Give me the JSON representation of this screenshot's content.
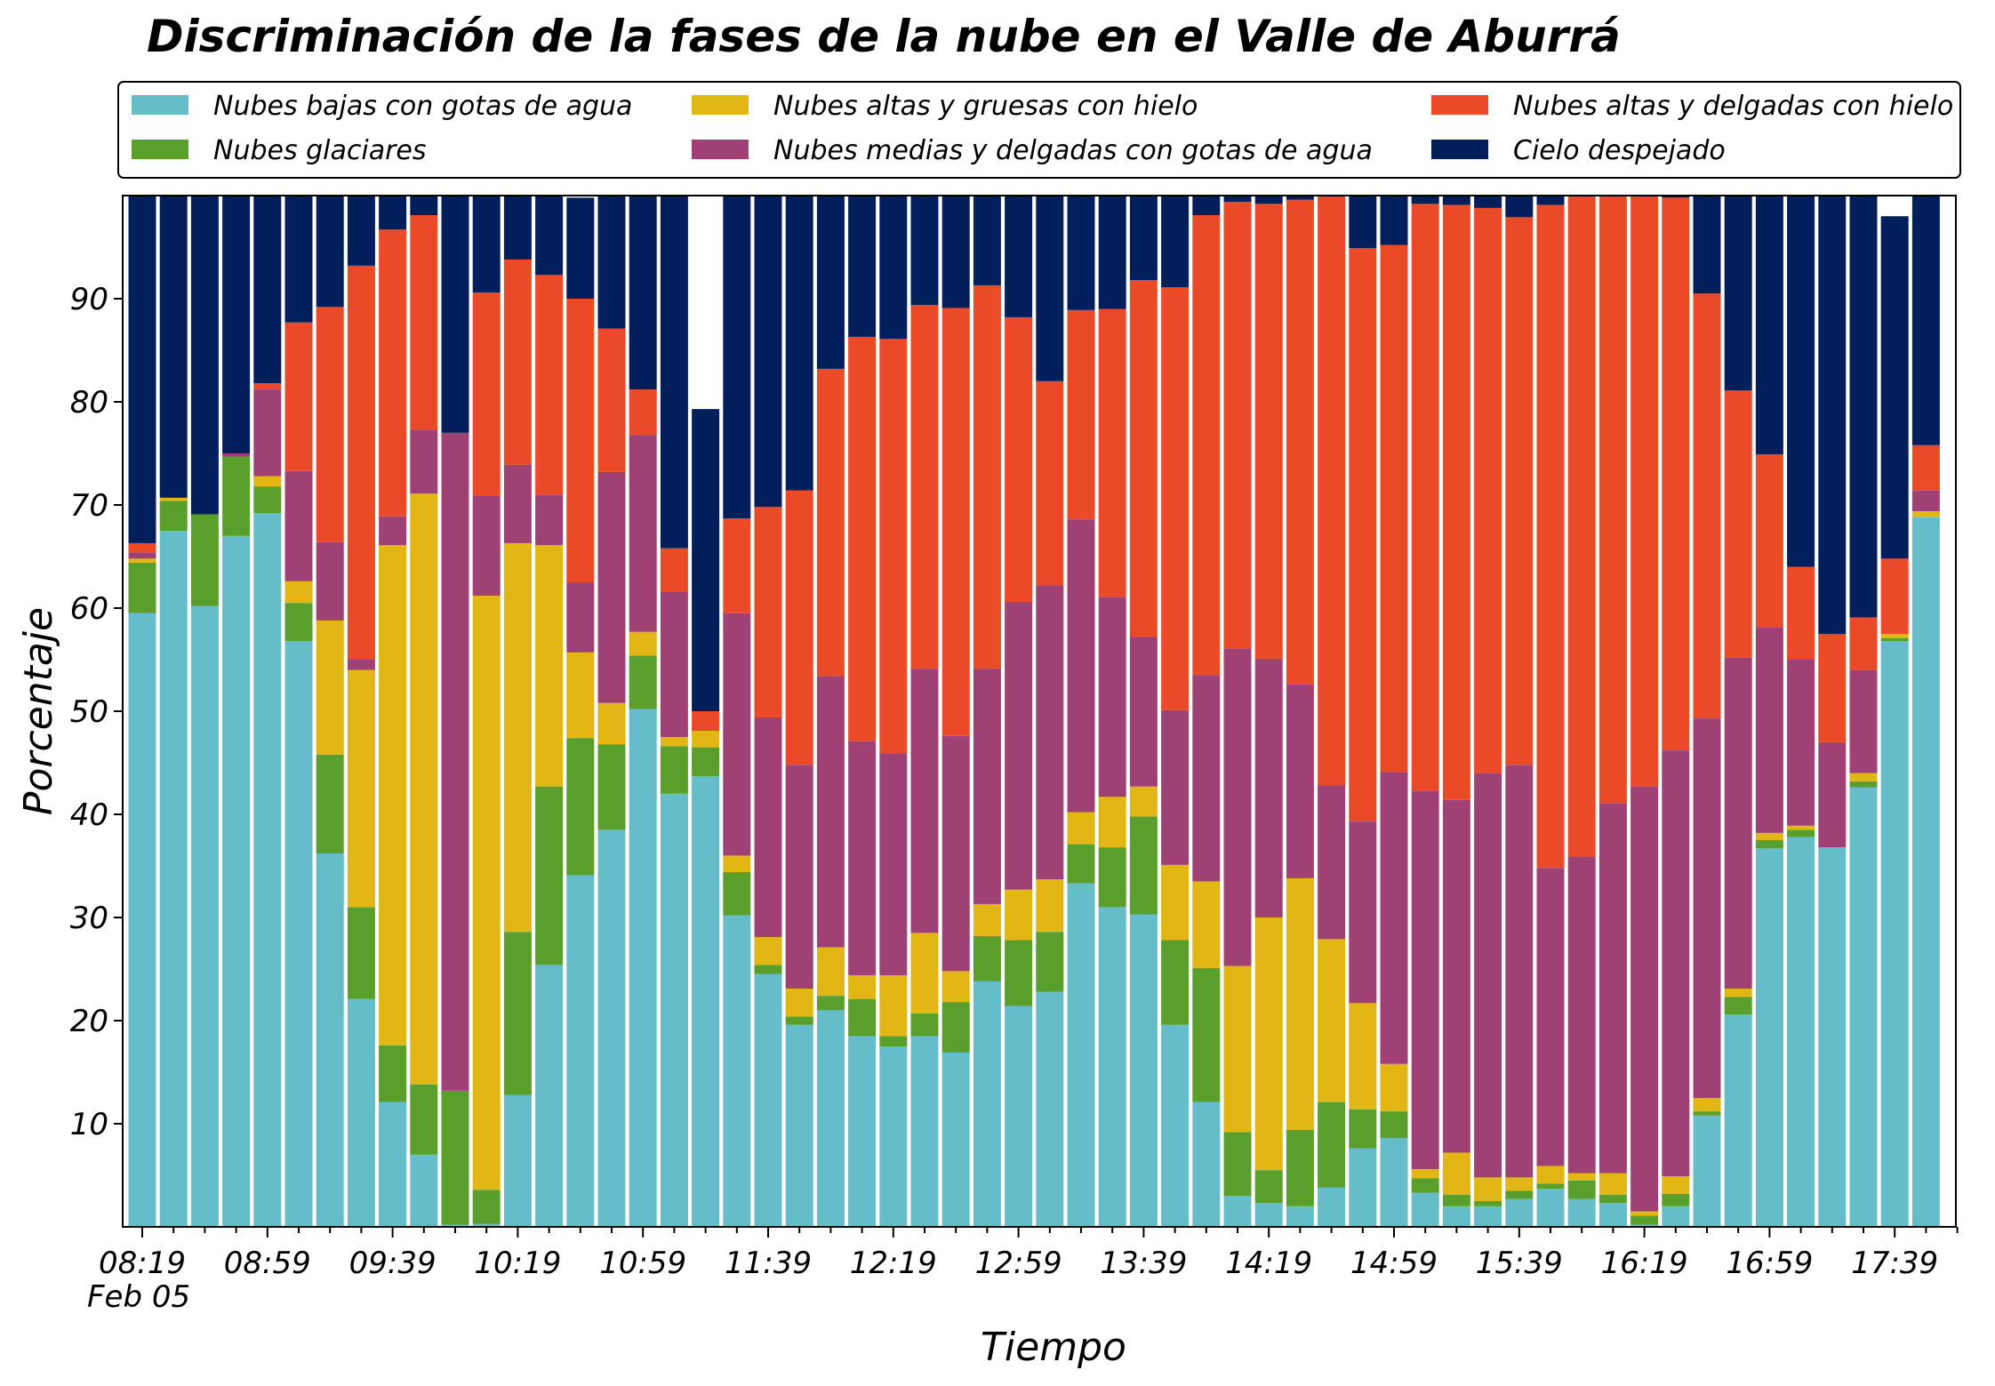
{
  "chart_data": {
    "type": "bar",
    "stacked": true,
    "title": "Discriminación de la fases de la nube en el Valle de Aburrá",
    "xlabel": "Tiempo",
    "ylabel": "Porcentaje",
    "ylim": [
      0,
      100
    ],
    "yticks": [
      10,
      20,
      30,
      40,
      50,
      60,
      70,
      80,
      90
    ],
    "xtick_labels": [
      "08:19",
      "08:59",
      "09:39",
      "10:19",
      "10:59",
      "11:39",
      "12:19",
      "12:59",
      "13:39",
      "14:19",
      "14:59",
      "15:39",
      "16:19",
      "16:59",
      "17:39"
    ],
    "xtick_every": 4,
    "date_label": "Feb 05",
    "legend_placement": "top, 3 columns",
    "grid": false,
    "categories": [
      "08:19",
      "08:29",
      "08:39",
      "08:49",
      "08:59",
      "09:09",
      "09:19",
      "09:29",
      "09:39",
      "09:49",
      "09:59",
      "10:09",
      "10:19",
      "10:29",
      "10:39",
      "10:49",
      "10:59",
      "11:09",
      "11:19",
      "11:29",
      "11:39",
      "11:49",
      "11:59",
      "12:09",
      "12:19",
      "12:29",
      "12:39",
      "12:49",
      "12:59",
      "13:09",
      "13:19",
      "13:29",
      "13:39",
      "13:49",
      "13:59",
      "14:09",
      "14:19",
      "14:29",
      "14:39",
      "14:49",
      "14:59",
      "15:09",
      "15:19",
      "15:29",
      "15:39",
      "15:49",
      "15:59",
      "16:09",
      "16:19",
      "16:29",
      "16:39",
      "16:49",
      "16:59",
      "17:09",
      "17:19",
      "17:29",
      "17:39",
      "17:49"
    ],
    "series": [
      {
        "name": "Nubes bajas con gotas de agua",
        "color": "#64BDC8",
        "values": [
          59.5,
          67.5,
          60.2,
          67.0,
          69.2,
          56.8,
          36.2,
          22.1,
          12.1,
          7.0,
          0.2,
          0.3,
          12.8,
          25.4,
          34.1,
          38.5,
          50.2,
          42.0,
          43.7,
          30.2,
          24.5,
          19.6,
          21.0,
          18.5,
          17.5,
          18.5,
          16.9,
          23.8,
          21.4,
          22.8,
          33.3,
          31.0,
          30.3,
          19.6,
          12.1,
          3.0,
          2.3,
          2.0,
          3.8,
          7.6,
          8.6,
          3.3,
          2.0,
          2.0,
          2.7,
          3.7,
          2.7,
          2.3,
          0.2,
          2.0,
          10.8,
          20.6,
          36.7,
          37.8,
          36.8,
          42.6,
          56.8,
          68.8
        ]
      },
      {
        "name": "Nubes glaciares",
        "color": "#5A9F2B",
        "values": [
          4.9,
          2.9,
          8.9,
          7.7,
          2.6,
          3.7,
          9.6,
          8.9,
          5.5,
          6.8,
          13.0,
          3.3,
          15.8,
          17.3,
          13.3,
          8.3,
          5.2,
          4.6,
          2.8,
          4.2,
          0.9,
          0.8,
          1.4,
          3.6,
          1.0,
          2.2,
          4.9,
          4.4,
          6.4,
          5.8,
          3.8,
          5.8,
          9.5,
          8.2,
          13.0,
          6.2,
          3.2,
          7.4,
          8.3,
          3.8,
          2.6,
          1.4,
          1.1,
          0.5,
          0.8,
          0.5,
          1.8,
          0.8,
          0.9,
          1.2,
          0.4,
          1.7,
          0.8,
          0.7,
          0.0,
          0.6,
          0.3,
          0.0
        ]
      },
      {
        "name": "Nubes altas y gruesas con hielo",
        "color": "#E2B614",
        "values": [
          0.4,
          0.3,
          0.0,
          0.0,
          1.0,
          2.1,
          13.0,
          23.0,
          48.5,
          57.3,
          0.0,
          57.6,
          37.7,
          23.4,
          8.3,
          4.0,
          2.3,
          0.9,
          1.6,
          1.6,
          2.7,
          2.7,
          4.7,
          2.3,
          5.9,
          7.8,
          3.0,
          3.1,
          4.9,
          5.1,
          3.1,
          4.9,
          2.9,
          7.3,
          8.4,
          16.1,
          24.5,
          24.4,
          15.8,
          10.3,
          4.6,
          0.9,
          4.1,
          2.3,
          1.3,
          1.7,
          0.7,
          2.1,
          0.4,
          1.7,
          1.3,
          0.8,
          0.7,
          0.4,
          0.0,
          0.8,
          0.4,
          0.6
        ]
      },
      {
        "name": "Nubes medias y delgadas con gotas de agua",
        "color": "#A04176",
        "values": [
          0.6,
          0.0,
          0.0,
          0.3,
          8.4,
          10.7,
          7.6,
          1.0,
          2.8,
          6.2,
          63.8,
          9.7,
          7.6,
          4.9,
          6.8,
          22.4,
          19.1,
          14.1,
          0.0,
          23.5,
          21.3,
          21.7,
          26.3,
          22.7,
          21.5,
          25.6,
          22.8,
          22.8,
          27.9,
          28.5,
          28.4,
          19.4,
          14.5,
          15.0,
          20.0,
          30.8,
          25.1,
          18.8,
          14.9,
          17.6,
          28.3,
          36.7,
          34.2,
          39.2,
          40.0,
          28.9,
          30.7,
          35.9,
          41.2,
          41.3,
          36.8,
          32.1,
          19.9,
          16.1,
          10.2,
          10.0,
          0.0,
          2.0
        ]
      },
      {
        "name": "Nubes altas y delgadas con hielo",
        "color": "#EB4A28",
        "values": [
          0.9,
          0.0,
          0.0,
          0.0,
          0.6,
          14.4,
          22.8,
          38.2,
          27.8,
          20.8,
          0.0,
          19.7,
          19.9,
          21.3,
          27.5,
          13.9,
          4.4,
          4.2,
          1.9,
          9.2,
          20.4,
          26.6,
          29.8,
          39.2,
          40.2,
          35.3,
          41.5,
          37.2,
          27.6,
          19.8,
          20.3,
          27.9,
          34.6,
          41.0,
          44.6,
          43.3,
          44.1,
          47.0,
          57.5,
          55.6,
          51.1,
          56.9,
          57.7,
          54.8,
          53.1,
          64.3,
          64.1,
          59.0,
          57.7,
          53.6,
          41.2,
          25.9,
          16.8,
          9.0,
          10.5,
          5.1,
          7.3,
          4.4
        ]
      },
      {
        "name": "Cielo despejado",
        "color": "#021F5C",
        "values": [
          33.7,
          29.3,
          30.9,
          25.0,
          18.2,
          12.3,
          10.8,
          6.8,
          3.3,
          1.9,
          23.0,
          9.4,
          6.2,
          7.7,
          9.8,
          12.9,
          18.8,
          34.2,
          29.3,
          31.3,
          30.2,
          28.6,
          16.8,
          13.7,
          13.9,
          10.6,
          10.9,
          8.7,
          11.8,
          18.0,
          11.1,
          11.0,
          8.2,
          8.9,
          1.9,
          0.6,
          0.8,
          0.4,
          0.0,
          5.1,
          4.8,
          0.8,
          0.9,
          1.2,
          2.1,
          0.9,
          0.0,
          0.0,
          0.0,
          0.2,
          9.5,
          18.9,
          25.1,
          36.0,
          42.5,
          40.9,
          33.2,
          24.2
        ]
      }
    ]
  }
}
